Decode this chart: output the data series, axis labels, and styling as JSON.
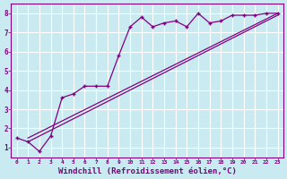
{
  "background_color": "#c8eaf0",
  "grid_color": "#ffffff",
  "line_color": "#800080",
  "xlabel": "Windchill (Refroidissement éolien,°C)",
  "xlabel_fontsize": 6.5,
  "xlim": [
    -0.5,
    23.5
  ],
  "ylim": [
    0.5,
    8.5
  ],
  "xticks": [
    0,
    1,
    2,
    3,
    4,
    5,
    6,
    7,
    8,
    9,
    10,
    11,
    12,
    13,
    14,
    15,
    16,
    17,
    18,
    19,
    20,
    21,
    22,
    23
  ],
  "yticks": [
    1,
    2,
    3,
    4,
    5,
    6,
    7,
    8
  ],
  "line1_x": [
    0,
    1,
    2,
    3,
    4,
    5,
    6,
    7,
    8,
    9,
    10,
    11,
    12,
    13,
    14,
    15,
    16,
    17,
    18,
    19,
    20,
    21,
    22,
    23
  ],
  "line1_y": [
    1.5,
    1.3,
    0.8,
    1.6,
    3.6,
    3.8,
    4.2,
    4.2,
    4.2,
    5.8,
    7.3,
    7.8,
    7.3,
    7.5,
    7.6,
    7.3,
    8.0,
    7.5,
    7.6,
    7.9,
    7.9,
    7.9,
    8.0,
    8.0
  ],
  "line2_x": [
    1,
    23
  ],
  "line2_y": [
    1.5,
    8.0
  ],
  "line3_x": [
    1,
    23
  ],
  "line3_y": [
    1.3,
    7.9
  ]
}
